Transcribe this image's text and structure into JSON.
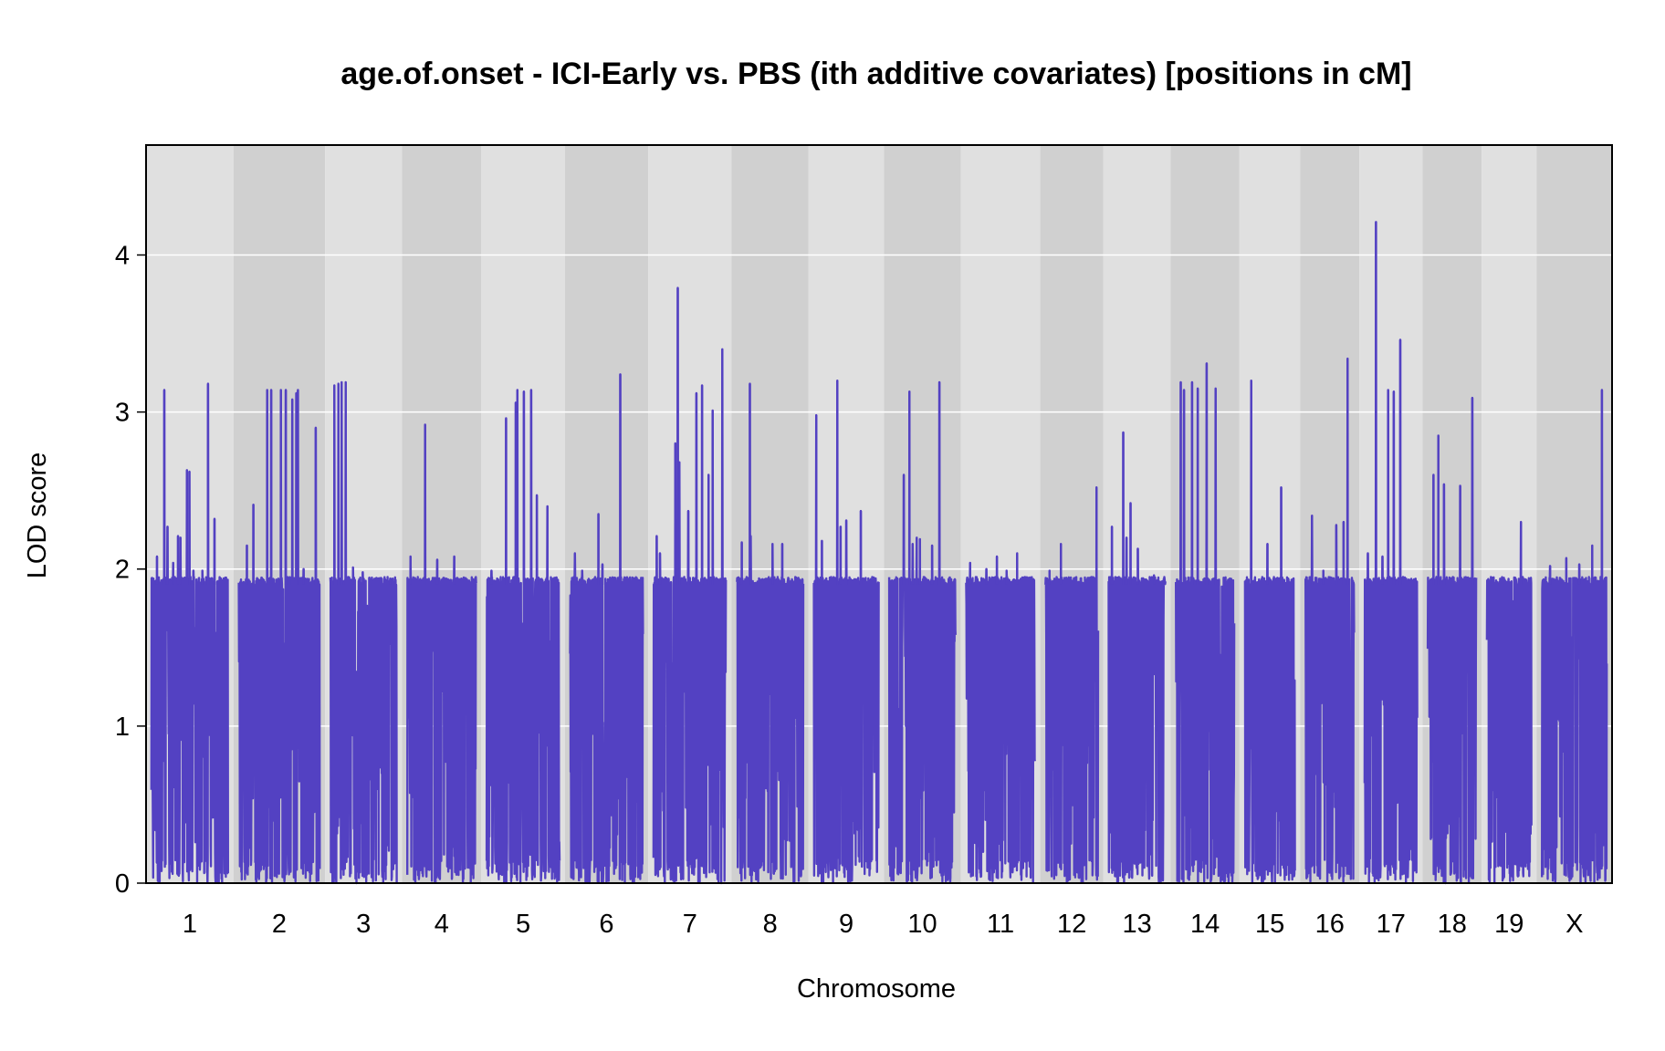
{
  "chart_data": {
    "type": "line",
    "title": "age.of.onset - ICI-Early vs. PBS (ith additive covariates) [positions in cM]",
    "xlabel": "Chromosome",
    "ylabel": "LOD score",
    "ylim": [
      0,
      4.7
    ],
    "yticks": [
      0,
      1,
      2,
      3,
      4
    ],
    "grid": true,
    "colors": {
      "line": "#5341c2",
      "band_light": "#e0e0e0",
      "band_dark": "#d0d0d0",
      "grid": "#ffffff",
      "frame": "#000000"
    },
    "chromosomes": [
      {
        "label": "1",
        "length_cM": 95,
        "peaks": [
          [
            7,
            2.08
          ],
          [
            16,
            3.14
          ],
          [
            20,
            2.27
          ],
          [
            27,
            2.04
          ],
          [
            33,
            2.21
          ],
          [
            36,
            2.2
          ],
          [
            44,
            2.63
          ],
          [
            47,
            2.62
          ],
          [
            52,
            1.99
          ],
          [
            63,
            1.99
          ],
          [
            70,
            3.18
          ],
          [
            78,
            2.32
          ]
        ]
      },
      {
        "label": "2",
        "length_cM": 100,
        "peaks": [
          [
            10,
            2.15
          ],
          [
            18,
            2.41
          ],
          [
            35,
            3.14
          ],
          [
            40,
            3.14
          ],
          [
            52,
            3.14
          ],
          [
            58,
            3.14
          ],
          [
            66,
            3.08
          ],
          [
            71,
            3.12
          ],
          [
            73,
            3.14
          ],
          [
            80,
            2.0
          ],
          [
            95,
            2.9
          ]
        ]
      },
      {
        "label": "3",
        "length_cM": 82,
        "peaks": [
          [
            5,
            3.17
          ],
          [
            10,
            3.18
          ],
          [
            14,
            3.19
          ],
          [
            19,
            3.19
          ],
          [
            28,
            2.01
          ],
          [
            40,
            1.98
          ],
          [
            74,
            1.94
          ]
        ]
      },
      {
        "label": "4",
        "length_cM": 85,
        "peaks": [
          [
            4,
            2.08
          ],
          [
            22,
            2.92
          ],
          [
            37,
            2.06
          ],
          [
            58,
            2.08
          ]
        ]
      },
      {
        "label": "5",
        "length_cM": 90,
        "peaks": [
          [
            6,
            1.99
          ],
          [
            24,
            2.96
          ],
          [
            36,
            3.06
          ],
          [
            38,
            3.14
          ],
          [
            46,
            3.13
          ],
          [
            55,
            3.14
          ],
          [
            62,
            2.47
          ],
          [
            75,
            2.4
          ]
        ]
      },
      {
        "label": "6",
        "length_cM": 90,
        "peaks": [
          [
            6,
            2.1
          ],
          [
            15,
            1.99
          ],
          [
            35,
            2.35
          ],
          [
            40,
            2.03
          ],
          [
            62,
            3.24
          ]
        ]
      },
      {
        "label": "7",
        "length_cM": 90,
        "peaks": [
          [
            4,
            2.21
          ],
          [
            8,
            2.1
          ],
          [
            27,
            2.8
          ],
          [
            30,
            3.79
          ],
          [
            32,
            2.68
          ],
          [
            43,
            2.37
          ],
          [
            53,
            3.12
          ],
          [
            60,
            3.17
          ],
          [
            68,
            2.6
          ],
          [
            73,
            3.01
          ],
          [
            85,
            3.4
          ]
        ]
      },
      {
        "label": "8",
        "length_cM": 82,
        "peaks": [
          [
            6,
            2.17
          ],
          [
            16,
            3.18
          ],
          [
            17,
            2.21
          ],
          [
            44,
            2.16
          ],
          [
            56,
            2.16
          ]
        ]
      },
      {
        "label": "9",
        "length_cM": 80,
        "peaks": [
          [
            3,
            2.98
          ],
          [
            10,
            2.18
          ],
          [
            29,
            3.2
          ],
          [
            33,
            2.27
          ],
          [
            40,
            2.31
          ],
          [
            58,
            2.37
          ]
        ]
      },
      {
        "label": "10",
        "length_cM": 82,
        "peaks": [
          [
            18,
            2.6
          ],
          [
            25,
            3.13
          ],
          [
            29,
            2.16
          ],
          [
            34,
            2.2
          ],
          [
            38,
            2.19
          ],
          [
            53,
            2.15
          ],
          [
            62,
            3.19
          ]
        ]
      },
      {
        "label": "11",
        "length_cM": 85,
        "peaks": [
          [
            5,
            2.04
          ],
          [
            25,
            2.0
          ],
          [
            38,
            2.08
          ],
          [
            50,
            1.99
          ],
          [
            63,
            2.1
          ]
        ]
      },
      {
        "label": "12",
        "length_cM": 65,
        "peaks": [
          [
            5,
            1.99
          ],
          [
            19,
            2.16
          ],
          [
            63,
            2.52
          ]
        ]
      },
      {
        "label": "13",
        "length_cM": 70,
        "peaks": [
          [
            4,
            2.27
          ],
          [
            18,
            2.87
          ],
          [
            22,
            2.2
          ],
          [
            27,
            2.42
          ],
          [
            36,
            2.13
          ],
          [
            56,
            1.96
          ]
        ]
      },
      {
        "label": "14",
        "length_cM": 72,
        "peaks": [
          [
            6,
            3.19
          ],
          [
            10,
            3.14
          ],
          [
            20,
            3.19
          ],
          [
            27,
            3.15
          ],
          [
            38,
            3.31
          ],
          [
            49,
            3.15
          ]
        ]
      },
      {
        "label": "15",
        "length_cM": 62,
        "peaks": [
          [
            8,
            3.2
          ],
          [
            28,
            2.16
          ],
          [
            45,
            2.52
          ]
        ]
      },
      {
        "label": "16",
        "length_cM": 60,
        "peaks": [
          [
            8,
            2.34
          ],
          [
            22,
            1.99
          ],
          [
            38,
            2.28
          ],
          [
            47,
            2.3
          ],
          [
            52,
            3.34
          ]
        ]
      },
      {
        "label": "17",
        "length_cM": 65,
        "peaks": [
          [
            4,
            2.1
          ],
          [
            14,
            4.21
          ],
          [
            22,
            2.08
          ],
          [
            29,
            3.14
          ],
          [
            36,
            3.13
          ],
          [
            44,
            3.46
          ]
        ]
      },
      {
        "label": "18",
        "length_cM": 60,
        "peaks": [
          [
            7,
            2.6
          ],
          [
            13,
            2.85
          ],
          [
            20,
            2.54
          ],
          [
            40,
            2.53
          ],
          [
            55,
            3.09
          ]
        ]
      },
      {
        "label": "19",
        "length_cM": 55,
        "peaks": [
          [
            42,
            2.3
          ]
        ]
      },
      {
        "label": "X",
        "length_cM": 80,
        "peaks": [
          [
            10,
            2.02
          ],
          [
            30,
            2.07
          ],
          [
            46,
            2.03
          ],
          [
            62,
            2.15
          ],
          [
            74,
            3.14
          ]
        ]
      }
    ]
  }
}
